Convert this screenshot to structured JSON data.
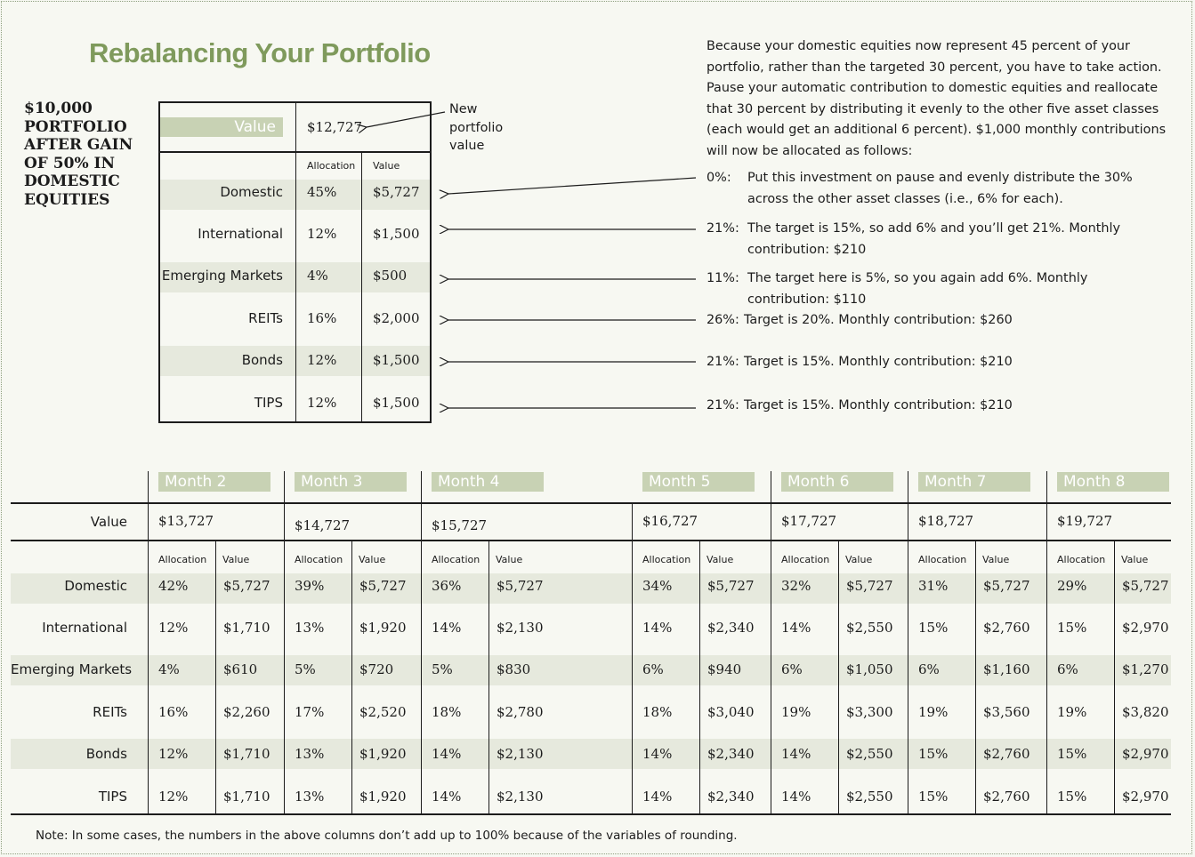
{
  "title": "Rebalancing Your Portfolio",
  "side_title": "$10,000 PORTFOLIO AFTER GAIN OF 50% IN DOMESTIC EQUITIES",
  "description": "Because your domestic equities now represent 45 percent of your portfolio, rather than the targeted 30 percent, you have to take action. Pause your automatic contribution to domestic equities and reallocate that 30 percent by distributing it evenly to the other five asset classes (each would get an additional 6 percent). $1,000 monthly contributions will now be allocated as follows:",
  "current": {
    "value_label": "Value",
    "value": "$12,727",
    "callout": "New portfolio value",
    "col_allocation": "Allocation",
    "col_value": "Value",
    "rows": [
      {
        "label": "Domestic",
        "allocation": "45%",
        "value": "$5,727"
      },
      {
        "label": "International",
        "allocation": "12%",
        "value": "$1,500"
      },
      {
        "label": "Emerging Markets",
        "allocation": "4%",
        "value": "$500"
      },
      {
        "label": "REITs",
        "allocation": "16%",
        "value": "$2,000"
      },
      {
        "label": "Bonds",
        "allocation": "12%",
        "value": "$1,500"
      },
      {
        "label": "TIPS",
        "allocation": "12%",
        "value": "$1,500"
      }
    ]
  },
  "explanations": [
    {
      "pct": "0%:",
      "text": "Put this investment on pause and evenly distribute the 30% across the other asset classes (i.e., 6% for each)."
    },
    {
      "pct": "21%:",
      "text": "The target is 15%, so add 6% and you’ll get 21%. Monthly contribution: $210"
    },
    {
      "pct": "11%:",
      "text": "The target here is 5%, so you again add 6%. Monthly contribution: $110"
    },
    {
      "pct": "26%:",
      "text": "Target is 20%. Monthly contribution: $260"
    },
    {
      "pct": "21%:",
      "text": "Target is 15%. Monthly contribution: $210"
    },
    {
      "pct": "21%:",
      "text": "Target is 15%. Monthly contribution: $210"
    }
  ],
  "months_table": {
    "value_label": "Value",
    "col_allocation": "Allocation",
    "col_value": "Value",
    "row_labels": [
      "Domestic",
      "International",
      "Emerging Markets",
      "REITs",
      "Bonds",
      "TIPS"
    ],
    "months": [
      {
        "name": "Month 2",
        "value": "$13,727",
        "alloc": [
          "42%",
          "12%",
          "4%",
          "16%",
          "12%",
          "12%"
        ],
        "vals": [
          "$5,727",
          "$1,710",
          "$610",
          "$2,260",
          "$1,710",
          "$1,710"
        ]
      },
      {
        "name": "Month 3",
        "value": "$14,727",
        "alloc": [
          "39%",
          "13%",
          "5%",
          "17%",
          "13%",
          "13%"
        ],
        "vals": [
          "$5,727",
          "$1,920",
          "$720",
          "$2,520",
          "$1,920",
          "$1,920"
        ]
      },
      {
        "name": "Month 4",
        "value": "$15,727",
        "alloc": [
          "36%",
          "14%",
          "5%",
          "18%",
          "14%",
          "14%"
        ],
        "vals": [
          "$5,727",
          "$2,130",
          "$830",
          "$2,780",
          "$2,130",
          "$2,130"
        ]
      },
      {
        "name": "Month 5",
        "value": "$16,727",
        "alloc": [
          "34%",
          "14%",
          "6%",
          "18%",
          "14%",
          "14%"
        ],
        "vals": [
          "$5,727",
          "$2,340",
          "$940",
          "$3,040",
          "$2,340",
          "$2,340"
        ]
      },
      {
        "name": "Month 6",
        "value": "$17,727",
        "alloc": [
          "32%",
          "14%",
          "6%",
          "19%",
          "14%",
          "14%"
        ],
        "vals": [
          "$5,727",
          "$2,550",
          "$1,050",
          "$3,300",
          "$2,550",
          "$2,550"
        ]
      },
      {
        "name": "Month 7",
        "value": "$18,727",
        "alloc": [
          "31%",
          "15%",
          "6%",
          "19%",
          "15%",
          "15%"
        ],
        "vals": [
          "$5,727",
          "$2,760",
          "$1,160",
          "$3,560",
          "$2,760",
          "$2,760"
        ]
      },
      {
        "name": "Month 8",
        "value": "$19,727",
        "alloc": [
          "29%",
          "15%",
          "6%",
          "19%",
          "15%",
          "15%"
        ],
        "vals": [
          "$5,727",
          "$2,970",
          "$1,270",
          "$3,820",
          "$2,970",
          "$2,970"
        ]
      }
    ]
  },
  "note": "Note: In some cases, the numbers in the above columns don’t add up to 100%  because of the variables of rounding."
}
